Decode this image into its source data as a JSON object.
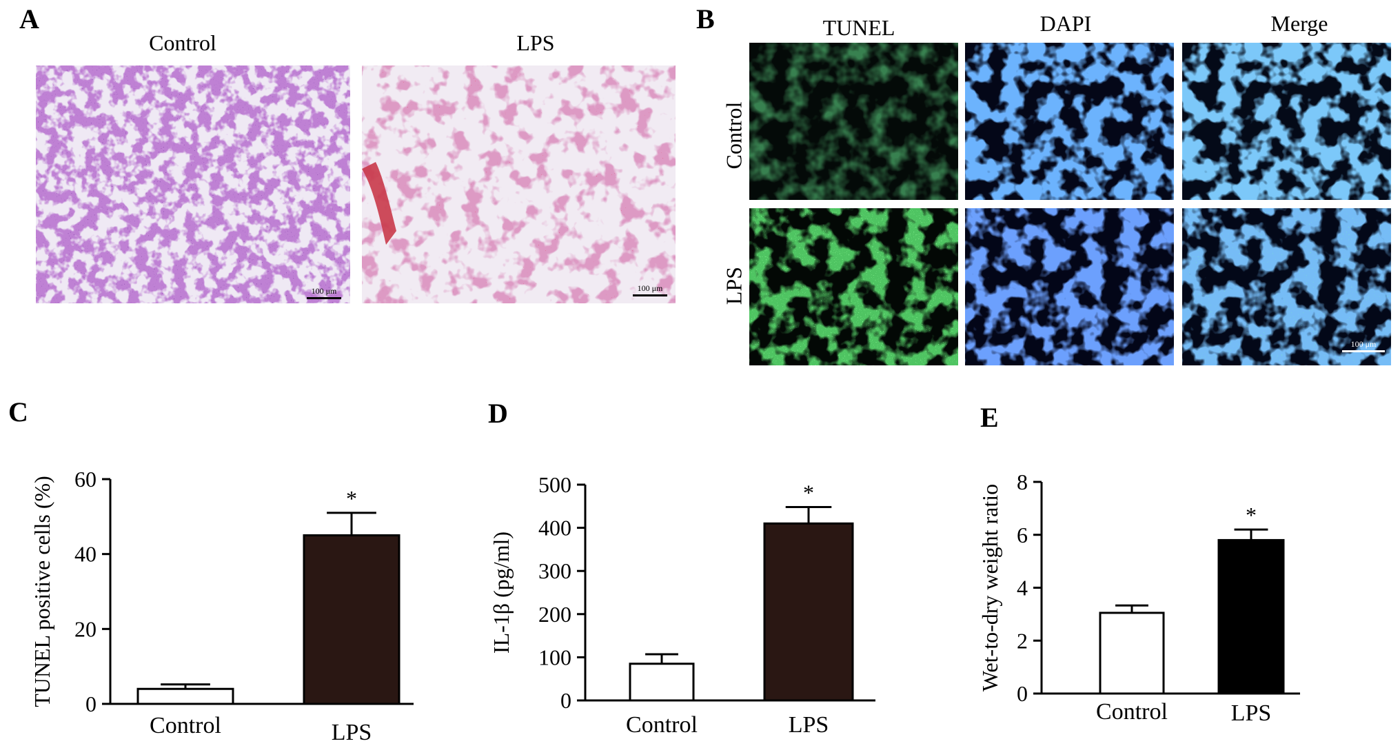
{
  "panels": {
    "A": {
      "letter": "A",
      "images": [
        {
          "label": "Control",
          "scale_label": "100 μm"
        },
        {
          "label": "LPS",
          "scale_label": "100 μm"
        }
      ]
    },
    "B": {
      "letter": "B",
      "columns": [
        "TUNEL",
        "DAPI",
        "Merge"
      ],
      "rows": [
        "Control",
        "LPS"
      ],
      "scale_label": "100 μm"
    },
    "C": {
      "letter": "C"
    },
    "D": {
      "letter": "D"
    },
    "E": {
      "letter": "E"
    }
  },
  "colors": {
    "he_background": "#efe9f4",
    "he_tissue_control": "#8a3fa9",
    "he_tissue_lps": "#b85a8e",
    "he_blood": "#c93a4a",
    "fluor_background": "#050a1a",
    "tunel_green": "#2fd23a",
    "dapi_blue": "#2f6cf5",
    "merge_blue": "#3a8ce8",
    "bar_control": "#ffffff",
    "bar_lps_c": "#2a1713",
    "bar_lps_d": "#2a1713",
    "bar_lps_e": "#000000"
  },
  "chart_data": [
    {
      "type": "bar",
      "panel": "C",
      "categories": [
        "Control",
        "LPS"
      ],
      "values": [
        4,
        45
      ],
      "errors": [
        1.2,
        6
      ],
      "significance": [
        "",
        "*"
      ],
      "ylabel": "TUNEL positive cells (%)",
      "ylim": [
        0,
        60
      ],
      "yticks": [
        0,
        20,
        40,
        60
      ]
    },
    {
      "type": "bar",
      "panel": "D",
      "categories": [
        "Control",
        "LPS"
      ],
      "values": [
        85,
        410
      ],
      "errors": [
        22,
        38
      ],
      "significance": [
        "",
        "*"
      ],
      "ylabel": "IL-1β (pg/ml)",
      "ylim": [
        0,
        500
      ],
      "yticks": [
        0,
        100,
        200,
        300,
        400,
        500
      ]
    },
    {
      "type": "bar",
      "panel": "E",
      "categories": [
        "Control",
        "LPS"
      ],
      "values": [
        3.05,
        5.8
      ],
      "errors": [
        0.28,
        0.4
      ],
      "significance": [
        "",
        "*"
      ],
      "ylabel": "Wet-to-dry weight ratio",
      "ylim": [
        0,
        8
      ],
      "yticks": [
        0,
        2,
        4,
        6,
        8
      ]
    }
  ]
}
